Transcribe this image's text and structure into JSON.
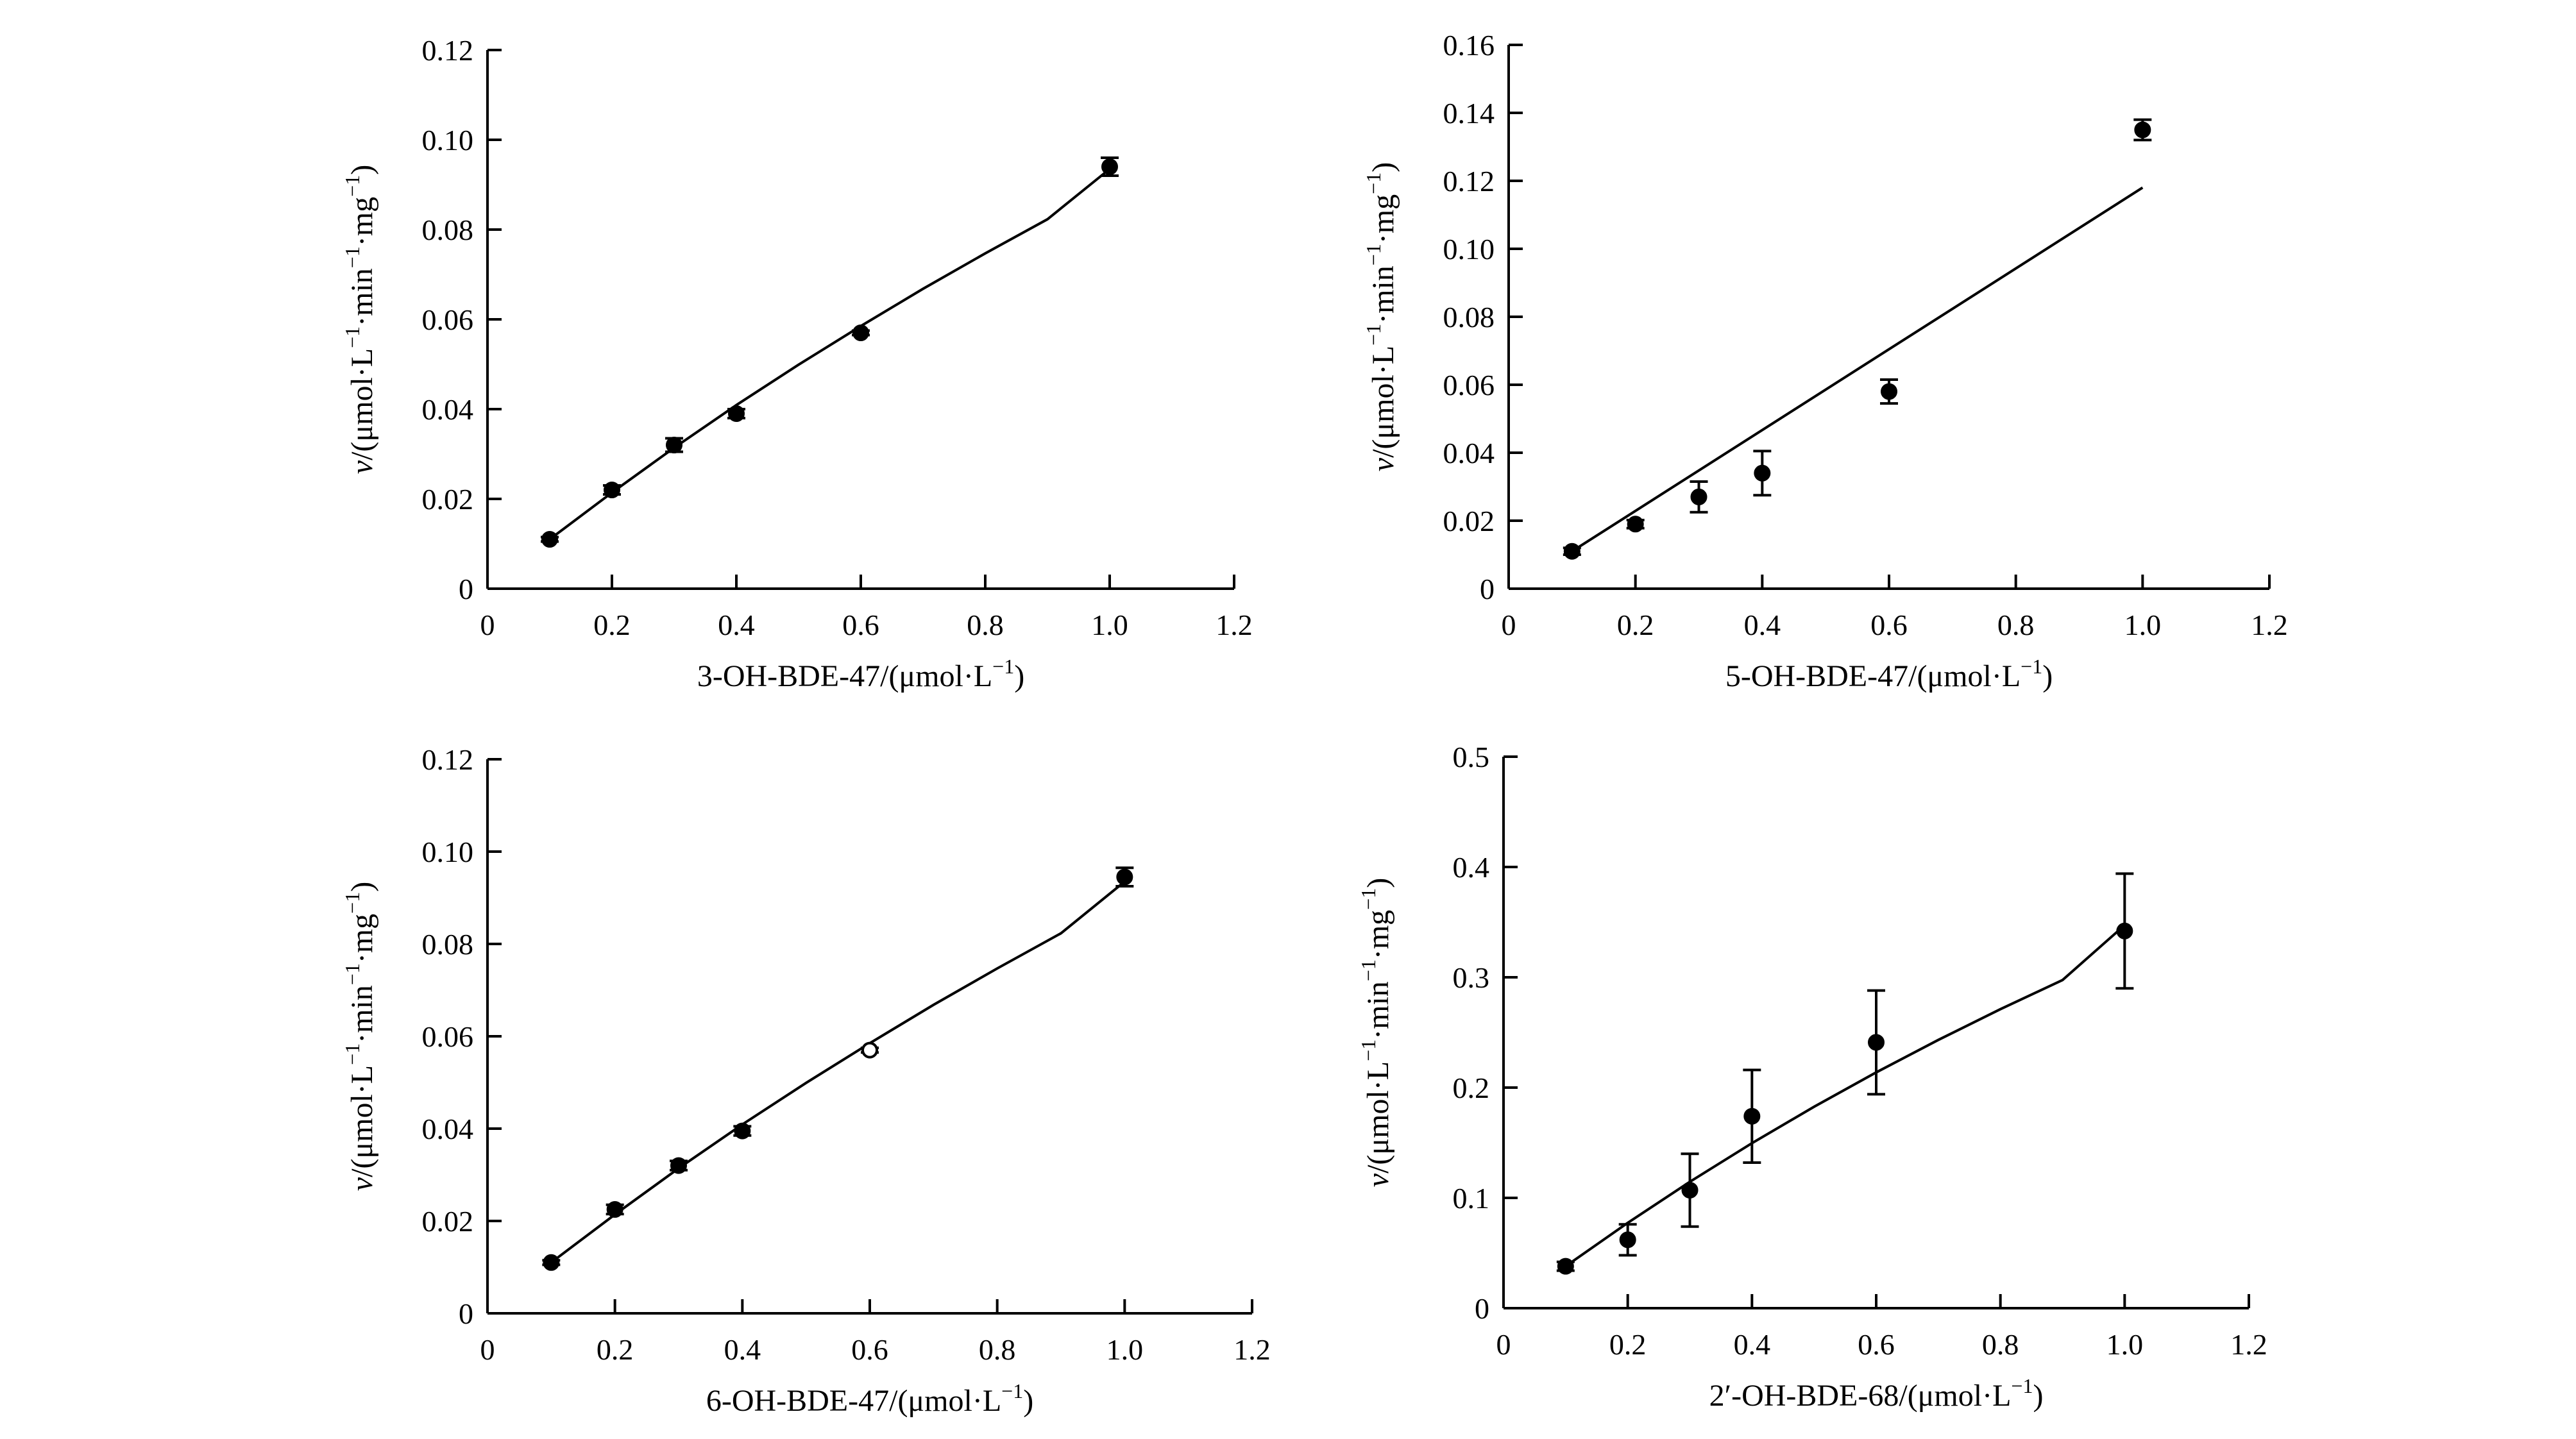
{
  "chart_data": [
    {
      "type": "scatter",
      "title": "",
      "xlabel": "3-OH-BDE-47/(μmol·L",
      "xlabel_sup": "−1",
      "xlabel_end": ")",
      "ylabel_italic": "v",
      "ylabel_main": "/(μmol·L",
      "ylabel_sup1": "−1",
      "ylabel_mid1": "·min",
      "ylabel_sup2": "−1",
      "ylabel_mid2": "·mg",
      "ylabel_sup3": "−1",
      "ylabel_end": ")",
      "xlim": [
        0,
        1.2
      ],
      "ylim": [
        0,
        0.12
      ],
      "xticks": [
        0,
        0.2,
        0.4,
        0.6,
        0.8,
        1.0,
        1.2
      ],
      "xtick_labels": [
        "0",
        "0.2",
        "0.4",
        "0.6",
        "0.8",
        "1.0",
        "1.2"
      ],
      "yticks": [
        0,
        0.02,
        0.04,
        0.06,
        0.08,
        0.1,
        0.12
      ],
      "ytick_labels": [
        "0",
        "0.02",
        "0.04",
        "0.06",
        "0.08",
        "0.10",
        "0.12"
      ],
      "x": [
        0.1,
        0.2,
        0.3,
        0.4,
        0.6,
        1.0
      ],
      "y": [
        0.011,
        0.022,
        0.032,
        0.039,
        0.057,
        0.094
      ],
      "yerr": [
        0.0005,
        0.001,
        0.0015,
        0.001,
        0.0005,
        0.002
      ],
      "open_markers": [
        false,
        false,
        false,
        false,
        false,
        false
      ],
      "fit": {
        "x": [
          0.1,
          0.2,
          0.3,
          0.4,
          0.5,
          0.6,
          0.7,
          0.8,
          0.9,
          1.0
        ],
        "y": [
          0.011,
          0.0214,
          0.0314,
          0.0409,
          0.0499,
          0.0585,
          0.0668,
          0.0747,
          0.0823,
          0.0935
        ]
      }
    },
    {
      "type": "scatter",
      "title": "",
      "xlabel": "5-OH-BDE-47/(μmol·L",
      "xlabel_sup": "−1",
      "xlabel_end": ")",
      "ylabel_italic": "v",
      "ylabel_main": "/(μmol·L",
      "ylabel_sup1": "−1",
      "ylabel_mid1": "·min",
      "ylabel_sup2": "−1",
      "ylabel_mid2": "·mg",
      "ylabel_sup3": "−1",
      "ylabel_end": ")",
      "xlim": [
        0,
        1.2
      ],
      "ylim": [
        0,
        0.16
      ],
      "xticks": [
        0,
        0.2,
        0.4,
        0.6,
        0.8,
        1.0,
        1.2
      ],
      "xtick_labels": [
        "0",
        "0.2",
        "0.4",
        "0.6",
        "0.8",
        "1.0",
        "1.2"
      ],
      "yticks": [
        0,
        0.02,
        0.04,
        0.06,
        0.08,
        0.1,
        0.12,
        0.14,
        0.16
      ],
      "ytick_labels": [
        "0",
        "0.02",
        "0.04",
        "0.06",
        "0.08",
        "0.10",
        "0.12",
        "0.14",
        "0.16"
      ],
      "x": [
        0.1,
        0.2,
        0.3,
        0.4,
        0.6,
        1.0
      ],
      "y": [
        0.011,
        0.019,
        0.027,
        0.034,
        0.058,
        0.135
      ],
      "yerr": [
        0.001,
        0.0012,
        0.0045,
        0.0065,
        0.0035,
        0.003
      ],
      "open_markers": [
        false,
        false,
        false,
        false,
        false,
        false
      ],
      "fit": {
        "x": [
          0.1,
          1.0
        ],
        "y": [
          0.011,
          0.118
        ]
      }
    },
    {
      "type": "scatter",
      "title": "",
      "xlabel": "6-OH-BDE-47/(μmol·L",
      "xlabel_sup": "−1",
      "xlabel_end": ")",
      "ylabel_italic": "v",
      "ylabel_main": "/(μmol·L",
      "ylabel_sup1": "−1",
      "ylabel_mid1": "·min",
      "ylabel_sup2": "−1",
      "ylabel_mid2": "·mg",
      "ylabel_sup3": "−1",
      "ylabel_end": ")",
      "xlim": [
        0,
        1.2
      ],
      "ylim": [
        0,
        0.12
      ],
      "xticks": [
        0,
        0.2,
        0.4,
        0.6,
        0.8,
        1.0,
        1.2
      ],
      "xtick_labels": [
        "0",
        "0.2",
        "0.4",
        "0.6",
        "0.8",
        "1.0",
        "1.2"
      ],
      "yticks": [
        0,
        0.02,
        0.04,
        0.06,
        0.08,
        0.1,
        0.12
      ],
      "ytick_labels": [
        "0",
        "0.02",
        "0.04",
        "0.06",
        "0.08",
        "0.10",
        "0.12"
      ],
      "x": [
        0.1,
        0.2,
        0.3,
        0.4,
        0.6,
        1.0
      ],
      "y": [
        0.011,
        0.0225,
        0.032,
        0.0395,
        0.057,
        0.0945
      ],
      "yerr": [
        0.0005,
        0.001,
        0.001,
        0.001,
        0.0005,
        0.002
      ],
      "open_markers": [
        false,
        false,
        false,
        false,
        true,
        false
      ],
      "fit": {
        "x": [
          0.1,
          0.2,
          0.3,
          0.4,
          0.5,
          0.6,
          0.7,
          0.8,
          0.9,
          1.0
        ],
        "y": [
          0.011,
          0.0214,
          0.0314,
          0.0409,
          0.0499,
          0.0585,
          0.0668,
          0.0747,
          0.0823,
          0.0935
        ]
      }
    },
    {
      "type": "scatter",
      "title": "",
      "xlabel": "2′-OH-BDE-68/(μmol·L",
      "xlabel_sup": "−1",
      "xlabel_end": ")",
      "ylabel_italic": "v",
      "ylabel_main": "/(μmol·L",
      "ylabel_sup1": "−1",
      "ylabel_mid1": "·min",
      "ylabel_sup2": "−1",
      "ylabel_mid2": "·mg",
      "ylabel_sup3": "−1",
      "ylabel_end": ")",
      "xlim": [
        0,
        1.2
      ],
      "ylim": [
        0,
        0.5
      ],
      "xticks": [
        0,
        0.2,
        0.4,
        0.6,
        0.8,
        1.0,
        1.2
      ],
      "xtick_labels": [
        "0",
        "0.2",
        "0.4",
        "0.6",
        "0.8",
        "1.0",
        "1.2"
      ],
      "yticks": [
        0,
        0.1,
        0.2,
        0.3,
        0.4,
        0.5
      ],
      "ytick_labels": [
        "0",
        "0.1",
        "0.2",
        "0.3",
        "0.4",
        "0.5"
      ],
      "x": [
        0.1,
        0.2,
        0.3,
        0.4,
        0.6,
        1.0
      ],
      "y": [
        0.038,
        0.062,
        0.107,
        0.174,
        0.241,
        0.342
      ],
      "yerr": [
        0.004,
        0.014,
        0.033,
        0.042,
        0.047,
        0.052
      ],
      "open_markers": [
        false,
        false,
        false,
        false,
        false,
        false
      ],
      "fit": {
        "x": [
          0.1,
          0.2,
          0.3,
          0.4,
          0.5,
          0.6,
          0.7,
          0.8,
          0.9,
          1.0
        ],
        "y": [
          0.038,
          0.0774,
          0.1146,
          0.1496,
          0.1826,
          0.2138,
          0.2432,
          0.2711,
          0.2975,
          0.3472
        ]
      }
    }
  ]
}
